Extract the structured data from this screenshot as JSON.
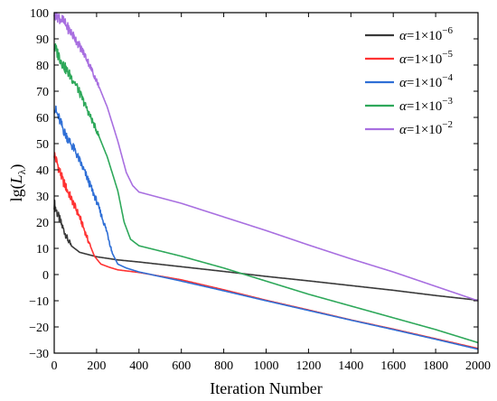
{
  "chart_data": {
    "type": "line",
    "title": "",
    "xlabel": "Iteration Number",
    "ylabel": {
      "base": "lg(",
      "var": "L",
      "sub": "λ",
      "close": ")"
    },
    "xlim": [
      0,
      2000
    ],
    "ylim": [
      -30,
      100
    ],
    "xticks": [
      0,
      200,
      400,
      600,
      800,
      1000,
      1200,
      1400,
      1600,
      1800,
      2000
    ],
    "yticks": [
      -30,
      -20,
      -10,
      0,
      10,
      20,
      30,
      40,
      50,
      60,
      70,
      80,
      90,
      100
    ],
    "grid": false,
    "legend_position": "top-right",
    "series": [
      {
        "name": {
          "var": "α",
          "eq": "=1×10",
          "exp": "−6"
        },
        "color": "#3a3a3a",
        "noise": {
          "start": 0,
          "end": 80,
          "amp": 2.2
        },
        "points": [
          [
            0,
            27
          ],
          [
            20,
            22
          ],
          [
            40,
            18
          ],
          [
            60,
            14
          ],
          [
            80,
            11
          ],
          [
            120,
            8.5
          ],
          [
            200,
            6.8
          ],
          [
            300,
            5.6
          ],
          [
            400,
            4.8
          ],
          [
            600,
            3
          ],
          [
            800,
            1.2
          ],
          [
            1000,
            -0.7
          ],
          [
            1200,
            -2.4
          ],
          [
            1400,
            -4.2
          ],
          [
            1600,
            -6
          ],
          [
            1800,
            -8
          ],
          [
            2000,
            -9.8
          ]
        ]
      },
      {
        "name": {
          "var": "α",
          "eq": "=1×10",
          "exp": "−5"
        },
        "color": "#ff3333",
        "noise": {
          "start": 0,
          "end": 170,
          "amp": 2.2
        },
        "points": [
          [
            0,
            46
          ],
          [
            40,
            36
          ],
          [
            80,
            29
          ],
          [
            120,
            22
          ],
          [
            160,
            13
          ],
          [
            190,
            7
          ],
          [
            220,
            4
          ],
          [
            260,
            2.8
          ],
          [
            300,
            1.8
          ],
          [
            400,
            0.8
          ],
          [
            600,
            -2
          ],
          [
            800,
            -5.8
          ],
          [
            1000,
            -9.8
          ],
          [
            1200,
            -13.5
          ],
          [
            1400,
            -17.3
          ],
          [
            1600,
            -20.8
          ],
          [
            1800,
            -24.5
          ],
          [
            2000,
            -28.2
          ]
        ]
      },
      {
        "name": {
          "var": "α",
          "eq": "=1×10",
          "exp": "−4"
        },
        "color": "#2f6fd6",
        "noise": {
          "start": 0,
          "end": 275,
          "amp": 2.2
        },
        "points": [
          [
            0,
            64
          ],
          [
            50,
            54
          ],
          [
            100,
            47
          ],
          [
            150,
            38
          ],
          [
            200,
            28
          ],
          [
            250,
            16
          ],
          [
            275,
            8
          ],
          [
            300,
            4
          ],
          [
            340,
            2.5
          ],
          [
            400,
            1
          ],
          [
            600,
            -2.5
          ],
          [
            800,
            -6.2
          ],
          [
            1000,
            -10
          ],
          [
            1200,
            -13.7
          ],
          [
            1400,
            -17.4
          ],
          [
            1600,
            -21
          ],
          [
            1800,
            -24.7
          ],
          [
            2000,
            -28.5
          ]
        ]
      },
      {
        "name": {
          "var": "α",
          "eq": "=1×10",
          "exp": "−3"
        },
        "color": "#2ea85a",
        "noise": {
          "start": 0,
          "end": 210,
          "amp": 2.5
        },
        "points": [
          [
            0,
            87
          ],
          [
            50,
            79
          ],
          [
            100,
            73
          ],
          [
            150,
            64
          ],
          [
            200,
            55
          ],
          [
            250,
            45
          ],
          [
            300,
            32
          ],
          [
            330,
            20
          ],
          [
            360,
            13.5
          ],
          [
            400,
            11
          ],
          [
            600,
            7
          ],
          [
            800,
            2.5
          ],
          [
            1000,
            -2.5
          ],
          [
            1200,
            -7.5
          ],
          [
            1400,
            -12
          ],
          [
            1600,
            -16.5
          ],
          [
            1800,
            -21
          ],
          [
            2000,
            -26
          ]
        ]
      },
      {
        "name": {
          "var": "α",
          "eq": "=1×10",
          "exp": "−2"
        },
        "color": "#a86fe0",
        "noise": {
          "start": 0,
          "end": 210,
          "amp": 2.5
        },
        "points": [
          [
            0,
            100
          ],
          [
            40,
            97
          ],
          [
            100,
            90
          ],
          [
            150,
            83
          ],
          [
            200,
            74
          ],
          [
            250,
            64
          ],
          [
            300,
            51
          ],
          [
            340,
            39
          ],
          [
            370,
            34
          ],
          [
            400,
            31.5
          ],
          [
            600,
            27.2
          ],
          [
            800,
            22
          ],
          [
            1000,
            16.8
          ],
          [
            1200,
            11.3
          ],
          [
            1400,
            6
          ],
          [
            1600,
            1
          ],
          [
            1800,
            -4.5
          ],
          [
            2000,
            -10
          ]
        ]
      }
    ]
  }
}
